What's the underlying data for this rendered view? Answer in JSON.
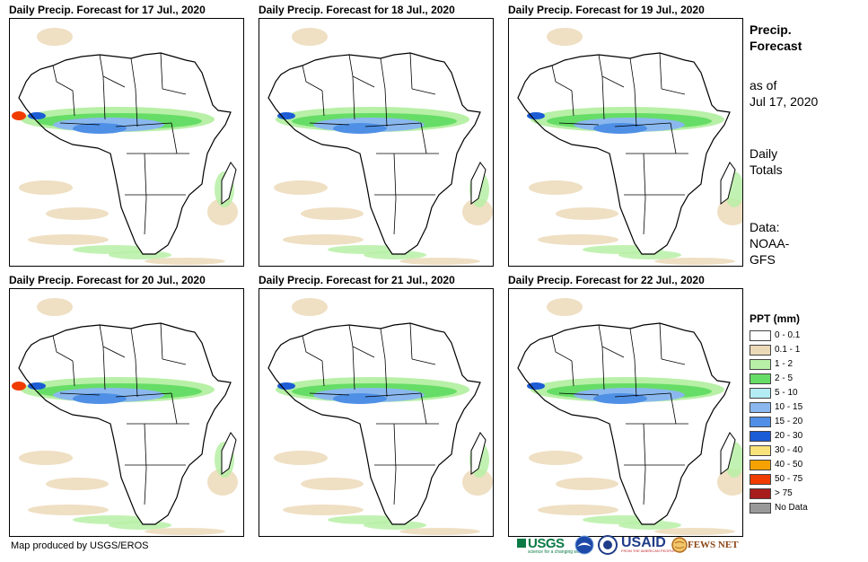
{
  "panels": [
    {
      "title": "Daily Precip. Forecast for 17 Jul., 2020"
    },
    {
      "title": "Daily Precip. Forecast for 18 Jul., 2020"
    },
    {
      "title": "Daily Precip. Forecast for 19 Jul., 2020"
    },
    {
      "title": "Daily Precip. Forecast for 20 Jul., 2020"
    },
    {
      "title": "Daily Precip. Forecast for 21 Jul., 2020"
    },
    {
      "title": "Daily Precip. Forecast for 22 Jul., 2020"
    }
  ],
  "side": {
    "heading_line1": "Precip.",
    "heading_line2": "Forecast",
    "asof_line1": "as of",
    "asof_line2": "Jul 17, 2020",
    "totals_line1": "Daily",
    "totals_line2": "Totals",
    "data_line1": "Data:",
    "data_line2": "NOAA-",
    "data_line3": "GFS"
  },
  "legend": {
    "title": "PPT (mm)",
    "items": [
      {
        "label": "0 - 0.1",
        "color": "#ffffff"
      },
      {
        "label": "0.1 - 1",
        "color": "#ecd9b8"
      },
      {
        "label": "1 - 2",
        "color": "#b7f0a6"
      },
      {
        "label": "2 - 5",
        "color": "#66dd66"
      },
      {
        "label": "5 - 10",
        "color": "#b4ecf4"
      },
      {
        "label": "10 - 15",
        "color": "#8ab8ee"
      },
      {
        "label": "15 - 20",
        "color": "#4f90e6"
      },
      {
        "label": "20 - 30",
        "color": "#1c5cd6"
      },
      {
        "label": "30 - 40",
        "color": "#f8e27a"
      },
      {
        "label": "40 - 50",
        "color": "#f5a200"
      },
      {
        "label": "50 - 75",
        "color": "#f03c00"
      },
      {
        "label": "> 75",
        "color": "#a81c1c"
      },
      {
        "label": "No Data",
        "color": "#999999"
      }
    ]
  },
  "credit": "Map produced by USGS/EROS",
  "logos": {
    "usgs": "USGS",
    "usgs_tagline": "science for a changing world",
    "usaid": "USAID",
    "usaid_tagline": "FROM THE AMERICAN PEOPLE",
    "fews": "FEWS NET"
  },
  "colors": {
    "land_outline": "#000000",
    "dry": "#ecd9b8",
    "light": "#b7f0a6",
    "green": "#66dd66",
    "blue1": "#8ab8ee",
    "blue2": "#4f90e6",
    "blue3": "#1c5cd6",
    "red": "#f03c00"
  }
}
